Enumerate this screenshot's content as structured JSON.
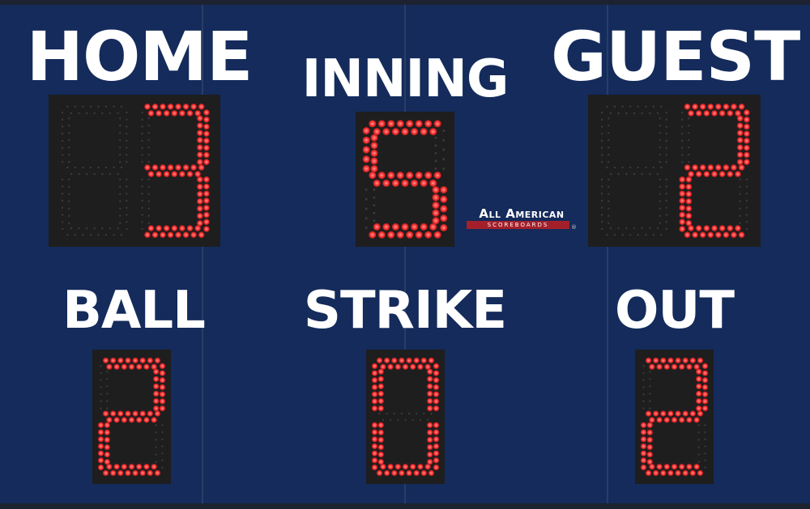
{
  "labels": {
    "home": "HOME",
    "inning": "INNING",
    "guest": "GUEST",
    "ball": "BALL",
    "strike": "STRIKE",
    "out": "OUT"
  },
  "values": {
    "home": [
      null,
      3
    ],
    "inning": [
      5
    ],
    "guest": [
      null,
      2
    ],
    "ball": [
      2
    ],
    "strike": [
      0
    ],
    "out": [
      2
    ]
  },
  "logo": {
    "line1": "All American",
    "line2": "SCOREBOARDS",
    "reg": "®"
  },
  "colors": {
    "background": "#142b5b",
    "led_on": "#ff3a3a",
    "led_off": "#3c3c3c",
    "panel": "#1e1e1f",
    "text": "#ffffff"
  }
}
